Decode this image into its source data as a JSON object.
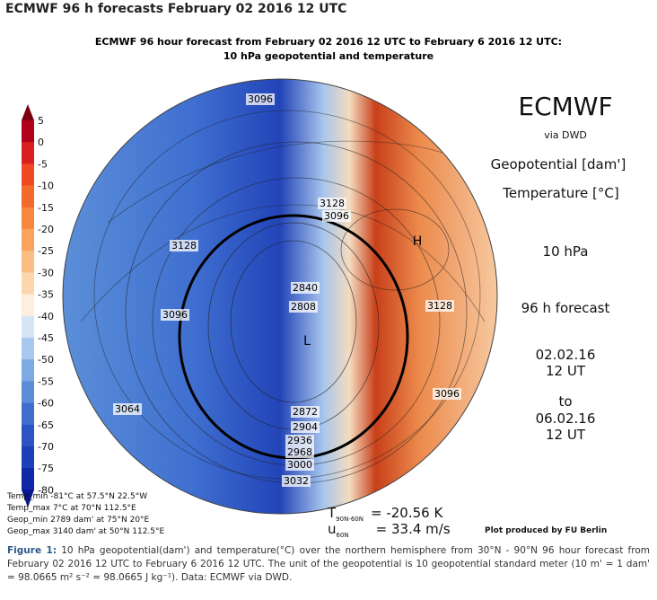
{
  "page_title": "ECMWF 96 h forecasts February 02 2016 12 UTC",
  "figure": {
    "title_line1": "ECMWF 96 hour forecast from February 02 2016 12 UTC to February 6 2016 12 UTC:",
    "title_line2": "10 hPa geopotential and temperature",
    "colorbar_labels": [
      5,
      0,
      -5,
      -10,
      -15,
      -20,
      -25,
      -30,
      -35,
      -40,
      -45,
      -50,
      -55,
      -60,
      -65,
      -70,
      -75,
      -80
    ],
    "contour_labels": [
      "3096",
      "3128",
      "3096",
      "3128",
      "3096",
      "2840",
      "2808",
      "3128",
      "3096",
      "3064",
      "2872",
      "2904",
      "2936",
      "2968",
      "3000",
      "3032"
    ],
    "pressure_centers": [
      "H",
      "L"
    ],
    "panel": {
      "brand": "ECMWF",
      "via": "via DWD",
      "geopotential": "Geopotential [dam']",
      "temperature": "Temperature [°C]",
      "level": "10 hPa",
      "forecast": "96 h forecast",
      "start_date": "02.02.16",
      "start_time": "12 UT",
      "to": "to",
      "end_date": "06.02.16",
      "end_time": "12 UT"
    },
    "stats": [
      "Temp_min -81°C at 57.5°N 22.5°W",
      "Temp_max 7°C at 70°N 112.5°E",
      "Geop_min 2789 dam' at 75°N 20°E",
      "Geop_max 3140 dam' at 50°N 112.5°E"
    ],
    "t_symbol": "T",
    "t_sub": "90N-60N",
    "t_value": "= -20.56 K",
    "u_symbol": "u",
    "u_sub": "60N",
    "u_value": "= 33.4 m/s",
    "credit": "Plot produced by FU Berlin"
  },
  "caption": {
    "label": "Figure 1:",
    "text": "10 hPa geopotential(dam') and temperature(°C) over the northern hemisphere from 30°N - 90°N 96 hour forecast from February 02 2016 12 UTC to February 6 2016 12 UTC. The unit of the geopotential is 10 geopotential standard meter (10 m' = 1 dam' = 98.0665 m² s⁻² = 98.0665 J kg⁻¹). Data: ECMWF via DWD."
  }
}
